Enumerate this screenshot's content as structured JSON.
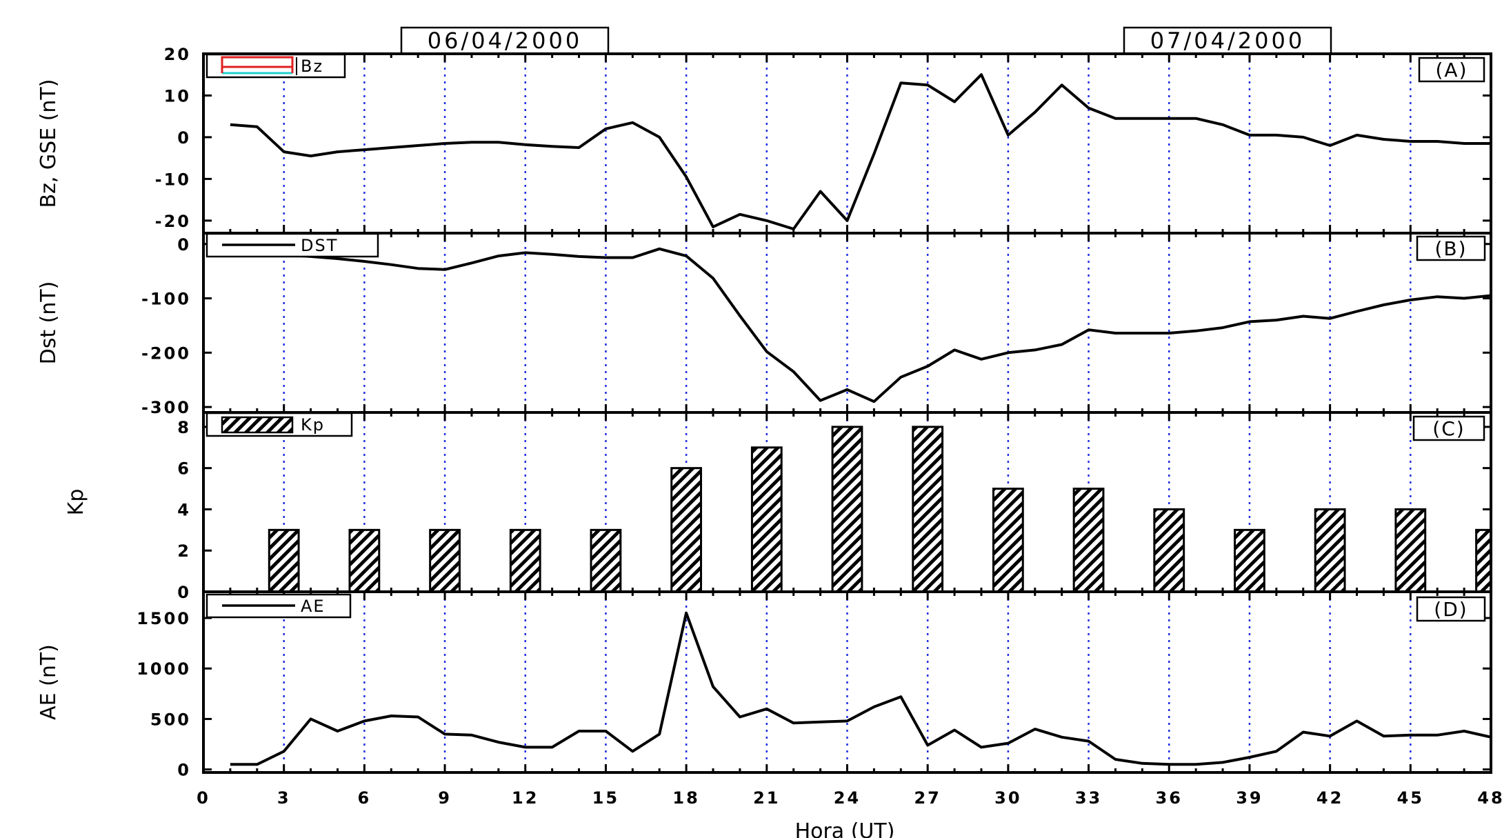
{
  "dates": [
    "06/04/2000",
    "07/04/2000"
  ],
  "chart_data": {
    "type": "multi-panel",
    "xlabel": "Hora (UT)",
    "xlim": [
      0,
      48
    ],
    "xticks": [
      0,
      3,
      6,
      9,
      12,
      15,
      18,
      21,
      24,
      27,
      30,
      33,
      36,
      39,
      42,
      45,
      48
    ],
    "grid": "vertical dotted blue lines every 3 h",
    "panels": [
      {
        "id": "A",
        "tag": "(A)",
        "type": "line",
        "ylabel": "Bz, GSE (nT)",
        "ylim": [
          -23,
          20
        ],
        "yticks": [
          20,
          10,
          0,
          -10,
          -20
        ],
        "legend": "Bz",
        "legend_position": "top-left",
        "x": [
          1,
          2,
          3,
          4,
          5,
          6,
          7,
          8,
          9,
          10,
          11,
          12,
          13,
          14,
          15,
          16,
          17,
          18,
          19,
          20,
          21,
          22,
          23,
          24,
          25,
          26,
          27,
          28,
          29,
          30,
          31,
          32,
          33,
          34,
          35,
          36,
          37,
          38,
          39,
          40,
          41,
          42,
          43,
          44,
          45,
          46,
          47,
          48
        ],
        "values": [
          3,
          2.5,
          -3.5,
          -4.5,
          -3.5,
          -3,
          -2.5,
          -2,
          -1.5,
          -1.2,
          -1.2,
          -1.8,
          -2.2,
          -2.5,
          2,
          3.5,
          0,
          -9.5,
          -21.5,
          -18.5,
          -20,
          -22,
          -13,
          -20,
          -4,
          13,
          12.5,
          8.5,
          15,
          0.5,
          6,
          12.5,
          7,
          4.5,
          4.5,
          4.5,
          4.5,
          3,
          0.5,
          0.5,
          0,
          -2,
          0.5,
          -0.5,
          -1,
          -1,
          -1.5,
          -1.5
        ],
        "color": "#000000"
      },
      {
        "id": "B",
        "tag": "(B)",
        "type": "line",
        "ylabel": "Dst (nT)",
        "ylim": [
          -310,
          20
        ],
        "yticks": [
          0,
          -100,
          -200,
          -300
        ],
        "legend": "DST",
        "legend_position": "top-left",
        "x": [
          1,
          2,
          3,
          4,
          5,
          6,
          7,
          8,
          9,
          10,
          11,
          12,
          13,
          14,
          15,
          16,
          17,
          18,
          19,
          20,
          21,
          22,
          23,
          24,
          25,
          26,
          27,
          28,
          29,
          30,
          31,
          32,
          33,
          34,
          35,
          36,
          37,
          38,
          39,
          40,
          41,
          42,
          43,
          44,
          45,
          46,
          47,
          48
        ],
        "values": [
          -18,
          -20,
          -20,
          -23,
          -27,
          -32,
          -38,
          -45,
          -47,
          -35,
          -22,
          -16,
          -19,
          -23,
          -25,
          -25,
          -9,
          -22,
          -63,
          -132,
          -198,
          -235,
          -288,
          -268,
          -290,
          -245,
          -225,
          -195,
          -212,
          -200,
          -195,
          -185,
          -158,
          -164,
          -164,
          -164,
          -160,
          -154,
          -143,
          -140,
          -133,
          -137,
          -124,
          -112,
          -103,
          -97,
          -100,
          -95
        ],
        "color": "#000000"
      },
      {
        "id": "C",
        "tag": "(C)",
        "type": "bar",
        "ylabel": "Kp",
        "ylim": [
          0,
          8.7
        ],
        "yticks": [
          0,
          2,
          4,
          6,
          8
        ],
        "legend": "Kp",
        "legend_position": "top-left",
        "x": [
          3,
          6,
          9,
          12,
          15,
          18,
          21,
          24,
          27,
          30,
          33,
          36,
          39,
          42,
          45,
          48
        ],
        "values": [
          3,
          3,
          3,
          3,
          3,
          6,
          7,
          8,
          8,
          5,
          5,
          4,
          3,
          4,
          4,
          3
        ],
        "bar_width_hours": 1.1,
        "fill": "hatched"
      },
      {
        "id": "D",
        "tag": "(D)",
        "type": "line",
        "ylabel": "AE (nT)",
        "ylim": [
          -30,
          1760
        ],
        "yticks": [
          1500,
          1000,
          500,
          0
        ],
        "legend": "AE",
        "legend_position": "top-left",
        "x": [
          1,
          2,
          3,
          4,
          5,
          6,
          7,
          8,
          9,
          10,
          11,
          12,
          13,
          14,
          15,
          16,
          17,
          18,
          19,
          20,
          21,
          22,
          23,
          24,
          25,
          26,
          27,
          28,
          29,
          30,
          31,
          32,
          33,
          34,
          35,
          36,
          37,
          38,
          39,
          40,
          41,
          42,
          43,
          44,
          45,
          46,
          47,
          48
        ],
        "values": [
          50,
          50,
          180,
          500,
          380,
          480,
          530,
          520,
          350,
          340,
          270,
          220,
          220,
          380,
          380,
          180,
          350,
          1550,
          820,
          520,
          600,
          460,
          470,
          480,
          620,
          720,
          240,
          390,
          220,
          260,
          400,
          320,
          280,
          100,
          60,
          50,
          50,
          70,
          120,
          180,
          370,
          330,
          480,
          330,
          340,
          340,
          380,
          320
        ],
        "color": "#000000"
      }
    ]
  }
}
